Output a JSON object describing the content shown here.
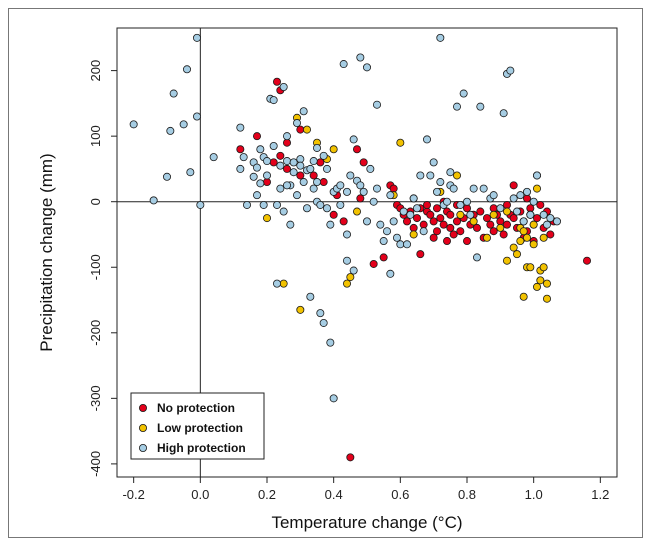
{
  "chart_data": {
    "type": "scatter",
    "title": "",
    "xlabel": "Temperature change (°C)",
    "ylabel": "Precipitation change (mm)",
    "xlim": [
      -0.25,
      1.25
    ],
    "ylim": [
      -420,
      265
    ],
    "xticks": [
      -0.2,
      0.0,
      0.2,
      0.4,
      0.6,
      0.8,
      1.0,
      1.2
    ],
    "xtick_labels": [
      "-0.2",
      "0.0",
      "0.2",
      "0.4",
      "0.6",
      "0.8",
      "1.0",
      "1.2"
    ],
    "yticks": [
      -400,
      -300,
      -200,
      -100,
      0,
      100,
      200
    ],
    "ytick_labels": [
      "-400",
      "-300",
      "-200",
      "-100",
      "0",
      "100",
      "200"
    ],
    "reference_lines": {
      "x": 0,
      "y": 0
    },
    "grid": false,
    "legend_position": "bottom-left",
    "series": [
      {
        "name": "No protection",
        "color": "#e3001b",
        "points": [
          [
            0.12,
            80
          ],
          [
            0.17,
            100
          ],
          [
            0.23,
            183
          ],
          [
            0.24,
            170
          ],
          [
            0.24,
            70
          ],
          [
            0.22,
            60
          ],
          [
            0.26,
            50
          ],
          [
            0.3,
            110
          ],
          [
            0.3,
            40
          ],
          [
            0.26,
            90
          ],
          [
            0.36,
            60
          ],
          [
            0.37,
            30
          ],
          [
            0.4,
            -20
          ],
          [
            0.41,
            10
          ],
          [
            0.43,
            -30
          ],
          [
            0.47,
            80
          ],
          [
            0.49,
            60
          ],
          [
            0.48,
            5
          ],
          [
            0.52,
            -95
          ],
          [
            0.55,
            -85
          ],
          [
            0.57,
            25
          ],
          [
            0.58,
            20
          ],
          [
            0.59,
            -5
          ],
          [
            0.6,
            -10
          ],
          [
            0.61,
            -20
          ],
          [
            0.62,
            -30
          ],
          [
            0.63,
            -15
          ],
          [
            0.64,
            -40
          ],
          [
            0.64,
            5
          ],
          [
            0.65,
            -25
          ],
          [
            0.66,
            -10
          ],
          [
            0.66,
            -80
          ],
          [
            0.67,
            -35
          ],
          [
            0.68,
            -15
          ],
          [
            0.68,
            -5
          ],
          [
            0.69,
            -20
          ],
          [
            0.7,
            -30
          ],
          [
            0.7,
            -55
          ],
          [
            0.71,
            -45
          ],
          [
            0.71,
            -10
          ],
          [
            0.72,
            -25
          ],
          [
            0.73,
            -35
          ],
          [
            0.73,
            0
          ],
          [
            0.74,
            -15
          ],
          [
            0.74,
            -60
          ],
          [
            0.75,
            -40
          ],
          [
            0.75,
            -20
          ],
          [
            0.76,
            -50
          ],
          [
            0.77,
            -30
          ],
          [
            0.77,
            -5
          ],
          [
            0.78,
            -45
          ],
          [
            0.79,
            -25
          ],
          [
            0.8,
            -60
          ],
          [
            0.8,
            -10
          ],
          [
            0.81,
            -35
          ],
          [
            0.82,
            -20
          ],
          [
            0.83,
            -40
          ],
          [
            0.84,
            -15
          ],
          [
            0.85,
            -55
          ],
          [
            0.86,
            -25
          ],
          [
            0.87,
            -35
          ],
          [
            0.88,
            -45
          ],
          [
            0.88,
            -10
          ],
          [
            0.89,
            -20
          ],
          [
            0.9,
            -30
          ],
          [
            0.91,
            -50
          ],
          [
            0.92,
            -5
          ],
          [
            0.92,
            -35
          ],
          [
            0.93,
            -20
          ],
          [
            0.94,
            -25
          ],
          [
            0.94,
            25
          ],
          [
            0.95,
            -40
          ],
          [
            0.96,
            -15
          ],
          [
            0.97,
            -30
          ],
          [
            0.97,
            -55
          ],
          [
            0.98,
            5
          ],
          [
            0.98,
            -45
          ],
          [
            0.99,
            -10
          ],
          [
            0.99,
            -20
          ],
          [
            1.0,
            -35
          ],
          [
            1.0,
            -60
          ],
          [
            1.01,
            -25
          ],
          [
            1.02,
            -5
          ],
          [
            1.03,
            -40
          ],
          [
            1.04,
            -15
          ],
          [
            1.05,
            -50
          ],
          [
            1.06,
            -30
          ],
          [
            1.16,
            -90
          ],
          [
            0.45,
            -390
          ],
          [
            0.34,
            40
          ],
          [
            0.2,
            30
          ]
        ]
      },
      {
        "name": "Low protection",
        "color": "#f2c200",
        "points": [
          [
            0.2,
            -25
          ],
          [
            0.25,
            -125
          ],
          [
            0.29,
            128
          ],
          [
            0.3,
            -165
          ],
          [
            0.32,
            110
          ],
          [
            0.35,
            90
          ],
          [
            0.38,
            65
          ],
          [
            0.4,
            80
          ],
          [
            0.44,
            -125
          ],
          [
            0.45,
            -115
          ],
          [
            0.47,
            -15
          ],
          [
            0.58,
            10
          ],
          [
            0.6,
            90
          ],
          [
            0.64,
            -50
          ],
          [
            0.72,
            15
          ],
          [
            0.77,
            40
          ],
          [
            0.78,
            -20
          ],
          [
            0.82,
            -30
          ],
          [
            0.86,
            -55
          ],
          [
            0.88,
            -20
          ],
          [
            0.9,
            -40
          ],
          [
            0.92,
            -15
          ],
          [
            0.94,
            -70
          ],
          [
            0.95,
            -80
          ],
          [
            0.96,
            -60
          ],
          [
            0.96,
            -40
          ],
          [
            0.97,
            -145
          ],
          [
            0.98,
            -100
          ],
          [
            0.98,
            -55
          ],
          [
            0.99,
            -20
          ],
          [
            1.0,
            -65
          ],
          [
            1.0,
            -35
          ],
          [
            1.01,
            20
          ],
          [
            1.01,
            -130
          ],
          [
            1.02,
            -105
          ],
          [
            1.02,
            -120
          ],
          [
            1.03,
            -100
          ],
          [
            1.03,
            -55
          ],
          [
            1.04,
            -125
          ],
          [
            1.04,
            -148
          ],
          [
            0.99,
            -100
          ],
          [
            1.01,
            40
          ],
          [
            0.92,
            -90
          ],
          [
            0.97,
            -45
          ]
        ]
      },
      {
        "name": "High protection",
        "color": "#a6cde3",
        "points": [
          [
            -0.2,
            118
          ],
          [
            -0.14,
            2
          ],
          [
            -0.1,
            38
          ],
          [
            -0.09,
            108
          ],
          [
            -0.08,
            165
          ],
          [
            -0.05,
            118
          ],
          [
            -0.04,
            202
          ],
          [
            -0.03,
            45
          ],
          [
            -0.01,
            130
          ],
          [
            -0.01,
            250
          ],
          [
            0.0,
            -5
          ],
          [
            0.04,
            68
          ],
          [
            0.12,
            113
          ],
          [
            0.12,
            50
          ],
          [
            0.13,
            68
          ],
          [
            0.14,
            -5
          ],
          [
            0.16,
            60
          ],
          [
            0.16,
            38
          ],
          [
            0.17,
            10
          ],
          [
            0.17,
            52
          ],
          [
            0.18,
            80
          ],
          [
            0.18,
            28
          ],
          [
            0.19,
            68
          ],
          [
            0.19,
            -5
          ],
          [
            0.2,
            40
          ],
          [
            0.2,
            62
          ],
          [
            0.21,
            157
          ],
          [
            0.22,
            155
          ],
          [
            0.22,
            85
          ],
          [
            0.23,
            -5
          ],
          [
            0.23,
            -125
          ],
          [
            0.24,
            55
          ],
          [
            0.24,
            20
          ],
          [
            0.25,
            175
          ],
          [
            0.25,
            -15
          ],
          [
            0.26,
            62
          ],
          [
            0.26,
            100
          ],
          [
            0.27,
            25
          ],
          [
            0.27,
            -35
          ],
          [
            0.28,
            60
          ],
          [
            0.28,
            45
          ],
          [
            0.29,
            120
          ],
          [
            0.29,
            10
          ],
          [
            0.3,
            65
          ],
          [
            0.3,
            55
          ],
          [
            0.31,
            138
          ],
          [
            0.31,
            30
          ],
          [
            0.32,
            48
          ],
          [
            0.32,
            -10
          ],
          [
            0.33,
            -145
          ],
          [
            0.34,
            62
          ],
          [
            0.34,
            20
          ],
          [
            0.35,
            0
          ],
          [
            0.35,
            82
          ],
          [
            0.36,
            -5
          ],
          [
            0.36,
            -170
          ],
          [
            0.37,
            70
          ],
          [
            0.37,
            -185
          ],
          [
            0.38,
            -10
          ],
          [
            0.38,
            50
          ],
          [
            0.39,
            -215
          ],
          [
            0.39,
            -35
          ],
          [
            0.4,
            -300
          ],
          [
            0.4,
            15
          ],
          [
            0.41,
            20
          ],
          [
            0.42,
            -5
          ],
          [
            0.43,
            210
          ],
          [
            0.44,
            15
          ],
          [
            0.44,
            -50
          ],
          [
            0.45,
            40
          ],
          [
            0.46,
            95
          ],
          [
            0.46,
            -105
          ],
          [
            0.47,
            32
          ],
          [
            0.48,
            25
          ],
          [
            0.48,
            220
          ],
          [
            0.49,
            15
          ],
          [
            0.5,
            205
          ],
          [
            0.5,
            -30
          ],
          [
            0.51,
            50
          ],
          [
            0.52,
            0
          ],
          [
            0.53,
            148
          ],
          [
            0.53,
            20
          ],
          [
            0.54,
            -35
          ],
          [
            0.55,
            -60
          ],
          [
            0.56,
            -45
          ],
          [
            0.57,
            10
          ],
          [
            0.58,
            -30
          ],
          [
            0.59,
            -55
          ],
          [
            0.6,
            -65
          ],
          [
            0.61,
            -15
          ],
          [
            0.62,
            -65
          ],
          [
            0.63,
            -20
          ],
          [
            0.64,
            5
          ],
          [
            0.65,
            -10
          ],
          [
            0.66,
            40
          ],
          [
            0.67,
            -45
          ],
          [
            0.68,
            95
          ],
          [
            0.69,
            40
          ],
          [
            0.7,
            60
          ],
          [
            0.71,
            15
          ],
          [
            0.72,
            30
          ],
          [
            0.72,
            250
          ],
          [
            0.73,
            -5
          ],
          [
            0.74,
            0
          ],
          [
            0.75,
            45
          ],
          [
            0.75,
            25
          ],
          [
            0.76,
            20
          ],
          [
            0.77,
            145
          ],
          [
            0.78,
            -5
          ],
          [
            0.79,
            165
          ],
          [
            0.8,
            0
          ],
          [
            0.81,
            -20
          ],
          [
            0.82,
            20
          ],
          [
            0.83,
            -85
          ],
          [
            0.84,
            145
          ],
          [
            0.85,
            20
          ],
          [
            0.87,
            5
          ],
          [
            0.88,
            10
          ],
          [
            0.9,
            -10
          ],
          [
            0.91,
            135
          ],
          [
            0.92,
            195
          ],
          [
            0.93,
            200
          ],
          [
            0.94,
            5
          ],
          [
            0.95,
            -15
          ],
          [
            0.96,
            10
          ],
          [
            0.97,
            -30
          ],
          [
            0.98,
            15
          ],
          [
            0.99,
            -20
          ],
          [
            1.0,
            0
          ],
          [
            1.01,
            40
          ],
          [
            1.03,
            -20
          ],
          [
            1.04,
            -35
          ],
          [
            1.05,
            -25
          ],
          [
            1.07,
            -30
          ],
          [
            0.26,
            25
          ],
          [
            0.33,
            50
          ],
          [
            0.44,
            -90
          ],
          [
            0.57,
            -110
          ],
          [
            0.35,
            30
          ],
          [
            0.42,
            25
          ]
        ]
      }
    ]
  }
}
